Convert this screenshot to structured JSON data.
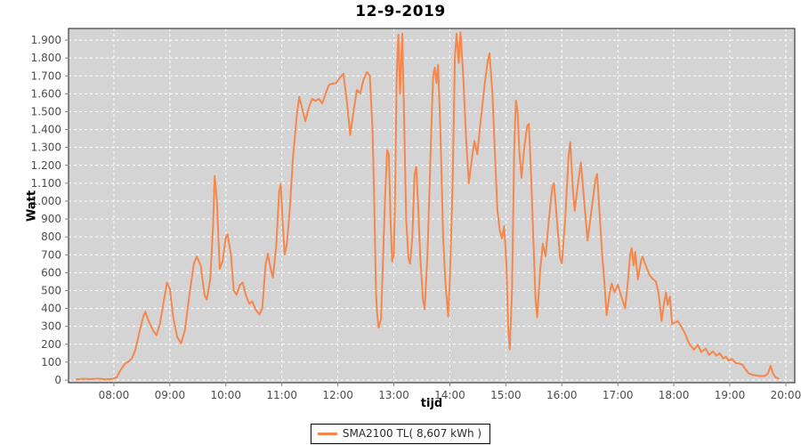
{
  "chart_data": {
    "type": "line",
    "title": "12-9-2019",
    "xlabel": "tijd",
    "ylabel": "Watt",
    "legend": {
      "label": "SMA2100 TL( 8,607 kWh )",
      "position": "bottom-center"
    },
    "x_axis": {
      "min_hour": 7.19,
      "max_hour": 20.16,
      "ticks": [
        {
          "hour": 8,
          "label": "08:00"
        },
        {
          "hour": 9,
          "label": "09:00"
        },
        {
          "hour": 10,
          "label": "10:00"
        },
        {
          "hour": 11,
          "label": "11:00"
        },
        {
          "hour": 12,
          "label": "12:00"
        },
        {
          "hour": 13,
          "label": "13:00"
        },
        {
          "hour": 14,
          "label": "14:00"
        },
        {
          "hour": 15,
          "label": "15:00"
        },
        {
          "hour": 16,
          "label": "16:00"
        },
        {
          "hour": 17,
          "label": "17:00"
        },
        {
          "hour": 18,
          "label": "18:00"
        },
        {
          "hour": 19,
          "label": "19:00"
        },
        {
          "hour": 20,
          "label": "20:00"
        }
      ]
    },
    "y_axis": {
      "min": -15,
      "max": 1965,
      "unit": "Watt",
      "ticks": [
        {
          "value": 0,
          "label": "0"
        },
        {
          "value": 100,
          "label": "100"
        },
        {
          "value": 200,
          "label": "200"
        },
        {
          "value": 300,
          "label": "300"
        },
        {
          "value": 400,
          "label": "400"
        },
        {
          "value": 500,
          "label": "500"
        },
        {
          "value": 600,
          "label": "600"
        },
        {
          "value": 700,
          "label": "700"
        },
        {
          "value": 800,
          "label": "800"
        },
        {
          "value": 900,
          "label": "900"
        },
        {
          "value": 1000,
          "label": "1.000"
        },
        {
          "value": 1100,
          "label": "1.100"
        },
        {
          "value": 1200,
          "label": "1.200"
        },
        {
          "value": 1300,
          "label": "1.300"
        },
        {
          "value": 1400,
          "label": "1.400"
        },
        {
          "value": 1500,
          "label": "1.500"
        },
        {
          "value": 1600,
          "label": "1.600"
        },
        {
          "value": 1700,
          "label": "1.700"
        },
        {
          "value": 1800,
          "label": "1.800"
        },
        {
          "value": 1900,
          "label": "1.900"
        }
      ]
    },
    "grid": {
      "shown": true,
      "style": "dashed",
      "color": "#ffffff"
    },
    "colors": {
      "line": "#f5874d",
      "plot_bg": "#d4d4d4",
      "grid": "#ffffff",
      "tick_text": "#4d4d4d",
      "tick_mark": "#808080",
      "border": "#1a1a1a"
    },
    "series": [
      {
        "name": "SMA2100 TL",
        "unit": "Watt",
        "points": [
          [
            7.33,
            4
          ],
          [
            7.45,
            7
          ],
          [
            7.58,
            5
          ],
          [
            7.72,
            8
          ],
          [
            7.85,
            4
          ],
          [
            7.97,
            6
          ],
          [
            8.05,
            15
          ],
          [
            8.1,
            45
          ],
          [
            8.15,
            70
          ],
          [
            8.2,
            92
          ],
          [
            8.26,
            102
          ],
          [
            8.32,
            120
          ],
          [
            8.38,
            165
          ],
          [
            8.45,
            260
          ],
          [
            8.52,
            350
          ],
          [
            8.56,
            382
          ],
          [
            8.62,
            330
          ],
          [
            8.7,
            276
          ],
          [
            8.76,
            250
          ],
          [
            8.82,
            312
          ],
          [
            8.89,
            440
          ],
          [
            8.95,
            545
          ],
          [
            9.0,
            510
          ],
          [
            9.06,
            350
          ],
          [
            9.13,
            240
          ],
          [
            9.2,
            205
          ],
          [
            9.27,
            282
          ],
          [
            9.35,
            480
          ],
          [
            9.43,
            652
          ],
          [
            9.48,
            690
          ],
          [
            9.55,
            640
          ],
          [
            9.62,
            472
          ],
          [
            9.66,
            450
          ],
          [
            9.72,
            562
          ],
          [
            9.77,
            850
          ],
          [
            9.8,
            1140
          ],
          [
            9.84,
            1000
          ],
          [
            9.89,
            622
          ],
          [
            9.94,
            662
          ],
          [
            10.0,
            798
          ],
          [
            10.03,
            815
          ],
          [
            10.09,
            700
          ],
          [
            10.14,
            502
          ],
          [
            10.19,
            476
          ],
          [
            10.25,
            530
          ],
          [
            10.3,
            545
          ],
          [
            10.36,
            472
          ],
          [
            10.42,
            426
          ],
          [
            10.47,
            440
          ],
          [
            10.53,
            396
          ],
          [
            10.6,
            365
          ],
          [
            10.65,
            400
          ],
          [
            10.71,
            650
          ],
          [
            10.75,
            706
          ],
          [
            10.8,
            622
          ],
          [
            10.84,
            572
          ],
          [
            10.9,
            750
          ],
          [
            10.95,
            1050
          ],
          [
            10.98,
            1096
          ],
          [
            11.02,
            852
          ],
          [
            11.05,
            702
          ],
          [
            11.09,
            762
          ],
          [
            11.14,
            950
          ],
          [
            11.2,
            1250
          ],
          [
            11.27,
            1490
          ],
          [
            11.31,
            1582
          ],
          [
            11.36,
            1520
          ],
          [
            11.42,
            1446
          ],
          [
            11.48,
            1520
          ],
          [
            11.54,
            1572
          ],
          [
            11.6,
            1560
          ],
          [
            11.66,
            1572
          ],
          [
            11.72,
            1546
          ],
          [
            11.78,
            1600
          ],
          [
            11.84,
            1650
          ],
          [
            11.9,
            1656
          ],
          [
            11.97,
            1660
          ],
          [
            12.04,
            1692
          ],
          [
            12.1,
            1712
          ],
          [
            12.16,
            1560
          ],
          [
            12.22,
            1370
          ],
          [
            12.28,
            1500
          ],
          [
            12.34,
            1622
          ],
          [
            12.4,
            1602
          ],
          [
            12.46,
            1682
          ],
          [
            12.52,
            1722
          ],
          [
            12.57,
            1700
          ],
          [
            12.62,
            1400
          ],
          [
            12.65,
            1000
          ],
          [
            12.68,
            500
          ],
          [
            12.7,
            372
          ],
          [
            12.73,
            292
          ],
          [
            12.77,
            340
          ],
          [
            12.8,
            600
          ],
          [
            12.84,
            1000
          ],
          [
            12.88,
            1286
          ],
          [
            12.91,
            1262
          ],
          [
            12.94,
            900
          ],
          [
            12.97,
            662
          ],
          [
            13.0,
            700
          ],
          [
            13.02,
            1000
          ],
          [
            13.05,
            1700
          ],
          [
            13.08,
            1930
          ],
          [
            13.11,
            1600
          ],
          [
            13.15,
            1936
          ],
          [
            13.18,
            1500
          ],
          [
            13.22,
            900
          ],
          [
            13.26,
            680
          ],
          [
            13.29,
            650
          ],
          [
            13.33,
            800
          ],
          [
            13.37,
            1150
          ],
          [
            13.4,
            1192
          ],
          [
            13.43,
            1000
          ],
          [
            13.47,
            700
          ],
          [
            13.52,
            452
          ],
          [
            13.55,
            396
          ],
          [
            13.6,
            700
          ],
          [
            13.65,
            1200
          ],
          [
            13.7,
            1700
          ],
          [
            13.73,
            1746
          ],
          [
            13.76,
            1660
          ],
          [
            13.79,
            1762
          ],
          [
            13.83,
            1400
          ],
          [
            13.88,
            800
          ],
          [
            13.92,
            550
          ],
          [
            13.97,
            355
          ],
          [
            14.0,
            552
          ],
          [
            14.05,
            1100
          ],
          [
            14.09,
            1800
          ],
          [
            14.12,
            1936
          ],
          [
            14.16,
            1772
          ],
          [
            14.19,
            1944
          ],
          [
            14.24,
            1700
          ],
          [
            14.29,
            1350
          ],
          [
            14.34,
            1100
          ],
          [
            14.4,
            1252
          ],
          [
            14.44,
            1336
          ],
          [
            14.49,
            1262
          ],
          [
            14.55,
            1450
          ],
          [
            14.62,
            1650
          ],
          [
            14.68,
            1790
          ],
          [
            14.71,
            1826
          ],
          [
            14.76,
            1600
          ],
          [
            14.8,
            1300
          ],
          [
            14.85,
            950
          ],
          [
            14.89,
            840
          ],
          [
            14.93,
            792
          ],
          [
            14.97,
            860
          ],
          [
            15.01,
            650
          ],
          [
            15.04,
            300
          ],
          [
            15.07,
            172
          ],
          [
            15.11,
            500
          ],
          [
            15.15,
            1300
          ],
          [
            15.18,
            1562
          ],
          [
            15.21,
            1500
          ],
          [
            15.24,
            1280
          ],
          [
            15.28,
            1130
          ],
          [
            15.33,
            1300
          ],
          [
            15.38,
            1420
          ],
          [
            15.41,
            1432
          ],
          [
            15.45,
            1150
          ],
          [
            15.49,
            800
          ],
          [
            15.53,
            452
          ],
          [
            15.56,
            350
          ],
          [
            15.61,
            600
          ],
          [
            15.66,
            762
          ],
          [
            15.71,
            692
          ],
          [
            15.77,
            900
          ],
          [
            15.83,
            1080
          ],
          [
            15.86,
            1100
          ],
          [
            15.91,
            900
          ],
          [
            15.97,
            680
          ],
          [
            16.0,
            652
          ],
          [
            16.06,
            900
          ],
          [
            16.12,
            1250
          ],
          [
            16.15,
            1330
          ],
          [
            16.2,
            1050
          ],
          [
            16.23,
            946
          ],
          [
            16.29,
            1100
          ],
          [
            16.34,
            1216
          ],
          [
            16.4,
            1000
          ],
          [
            16.46,
            780
          ],
          [
            16.53,
            950
          ],
          [
            16.6,
            1120
          ],
          [
            16.63,
            1152
          ],
          [
            16.68,
            900
          ],
          [
            16.72,
            700
          ],
          [
            16.76,
            546
          ],
          [
            16.8,
            362
          ],
          [
            16.85,
            480
          ],
          [
            16.89,
            540
          ],
          [
            16.94,
            490
          ],
          [
            17.0,
            532
          ],
          [
            17.07,
            460
          ],
          [
            17.13,
            400
          ],
          [
            17.18,
            550
          ],
          [
            17.22,
            700
          ],
          [
            17.25,
            736
          ],
          [
            17.28,
            640
          ],
          [
            17.31,
            716
          ],
          [
            17.36,
            562
          ],
          [
            17.41,
            660
          ],
          [
            17.44,
            690
          ],
          [
            17.5,
            640
          ],
          [
            17.56,
            590
          ],
          [
            17.62,
            566
          ],
          [
            17.68,
            550
          ],
          [
            17.73,
            480
          ],
          [
            17.78,
            330
          ],
          [
            17.82,
            420
          ],
          [
            17.86,
            490
          ],
          [
            17.89,
            420
          ],
          [
            17.93,
            466
          ],
          [
            17.97,
            312
          ],
          [
            18.02,
            322
          ],
          [
            18.07,
            330
          ],
          [
            18.13,
            300
          ],
          [
            18.2,
            260
          ],
          [
            18.28,
            200
          ],
          [
            18.36,
            170
          ],
          [
            18.43,
            196
          ],
          [
            18.49,
            156
          ],
          [
            18.57,
            176
          ],
          [
            18.63,
            140
          ],
          [
            18.7,
            160
          ],
          [
            18.76,
            136
          ],
          [
            18.82,
            150
          ],
          [
            18.88,
            120
          ],
          [
            18.93,
            130
          ],
          [
            18.98,
            108
          ],
          [
            19.04,
            118
          ],
          [
            19.1,
            96
          ],
          [
            19.16,
            92
          ],
          [
            19.22,
            88
          ],
          [
            19.28,
            60
          ],
          [
            19.34,
            36
          ],
          [
            19.42,
            28
          ],
          [
            19.52,
            24
          ],
          [
            19.62,
            22
          ],
          [
            19.68,
            36
          ],
          [
            19.73,
            80
          ],
          [
            19.77,
            36
          ],
          [
            19.82,
            14
          ],
          [
            19.87,
            8
          ]
        ]
      }
    ]
  }
}
